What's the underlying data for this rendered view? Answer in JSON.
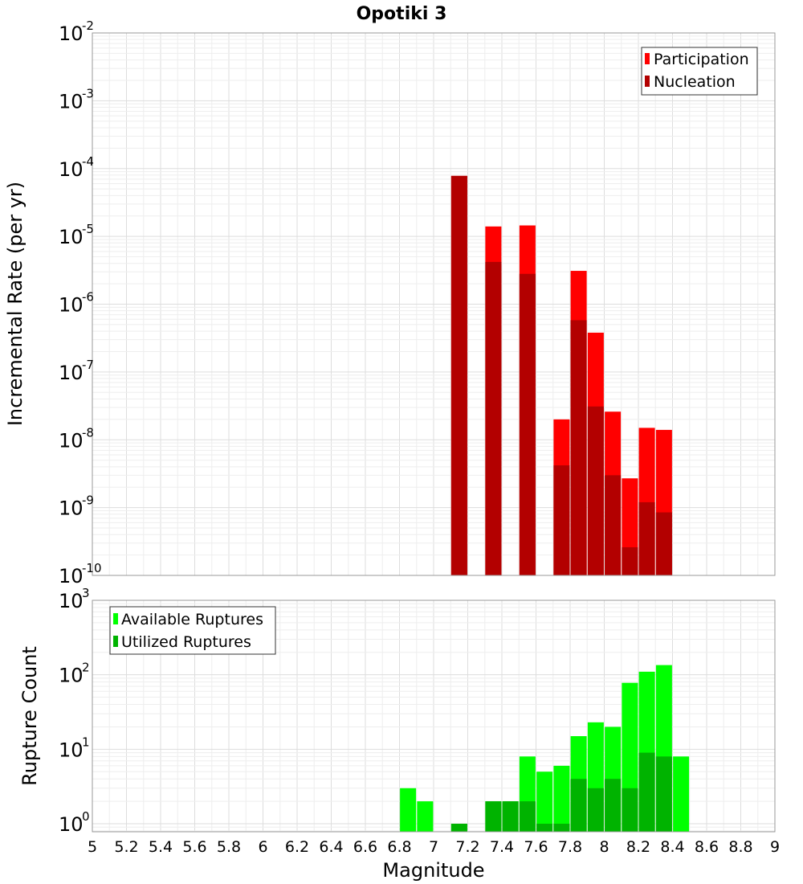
{
  "title": "Opotiki 3",
  "colors": {
    "participation": "#ff0000",
    "nucleation": "#b30000",
    "available": "#00ff00",
    "utilized": "#00b300",
    "grid_major": "#dddddd",
    "grid_minor": "#eeeeee",
    "frame": "#999999"
  },
  "chart_data": [
    {
      "type": "bar",
      "panel": "top",
      "ylabel": "Incremental Rate (per yr)",
      "xlabel": "",
      "yscale": "log",
      "xlim": [
        5,
        9
      ],
      "ylim": [
        1e-10,
        0.01
      ],
      "grid": true,
      "legend_position": "top-right",
      "ytick_labels": [
        {
          "base": "10",
          "exp": "-10"
        },
        {
          "base": "10",
          "exp": "-9"
        },
        {
          "base": "10",
          "exp": "-8"
        },
        {
          "base": "10",
          "exp": "-7"
        },
        {
          "base": "10",
          "exp": "-6"
        },
        {
          "base": "10",
          "exp": "-5"
        },
        {
          "base": "10",
          "exp": "-4"
        },
        {
          "base": "10",
          "exp": "-3"
        },
        {
          "base": "10",
          "exp": "-2"
        }
      ],
      "series": [
        {
          "name": "Participation",
          "color": "#ff0000",
          "x": [
            7.15,
            7.35,
            7.55,
            7.75,
            7.85,
            7.95,
            8.05,
            8.15,
            8.25,
            8.35
          ],
          "values": [
            7.8e-05,
            1.4e-05,
            1.45e-05,
            2e-08,
            3.1e-06,
            3.8e-07,
            2.6e-08,
            2.7e-09,
            1.5e-08,
            1.4e-08
          ]
        },
        {
          "name": "Nucleation",
          "color": "#b30000",
          "x": [
            7.15,
            7.35,
            7.55,
            7.75,
            7.85,
            7.95,
            8.05,
            8.15,
            8.25,
            8.35
          ],
          "values": [
            7.8e-05,
            4.2e-06,
            2.8e-06,
            4.2e-09,
            5.8e-07,
            3.1e-08,
            3e-09,
            2.6e-10,
            1.2e-09,
            8.5e-10
          ]
        }
      ]
    },
    {
      "type": "bar",
      "panel": "bottom",
      "ylabel": "Rupture Count",
      "xlabel": "Magnitude",
      "yscale": "log",
      "xlim": [
        5,
        9
      ],
      "ylim": [
        0.78,
        1000
      ],
      "grid": true,
      "legend_position": "top-left",
      "ytick_labels": [
        {
          "base": "10",
          "exp": "0"
        },
        {
          "base": "10",
          "exp": "1"
        },
        {
          "base": "10",
          "exp": "2"
        },
        {
          "base": "10",
          "exp": "3"
        }
      ],
      "xtick_labels": [
        "5",
        "5.2",
        "5.4",
        "5.6",
        "5.8",
        "6",
        "6.2",
        "6.4",
        "6.6",
        "6.8",
        "7",
        "7.2",
        "7.4",
        "7.6",
        "7.8",
        "8",
        "8.2",
        "8.4",
        "8.6",
        "8.8",
        "9"
      ],
      "series": [
        {
          "name": "Available Ruptures",
          "color": "#00ff00",
          "x": [
            6.85,
            6.95,
            7.15,
            7.35,
            7.45,
            7.55,
            7.65,
            7.75,
            7.85,
            7.95,
            8.05,
            8.15,
            8.25,
            8.35,
            8.45
          ],
          "values": [
            3,
            2,
            1,
            2,
            2,
            8,
            5,
            6,
            15,
            23,
            20,
            78,
            110,
            135,
            8
          ]
        },
        {
          "name": "Utilized Ruptures",
          "color": "#00b300",
          "x": [
            7.15,
            7.35,
            7.45,
            7.55,
            7.65,
            7.75,
            7.85,
            7.95,
            8.05,
            8.15,
            8.25,
            8.35
          ],
          "values": [
            1,
            2,
            2,
            2,
            1,
            1,
            4,
            3,
            4,
            3,
            9,
            8
          ]
        }
      ]
    }
  ]
}
